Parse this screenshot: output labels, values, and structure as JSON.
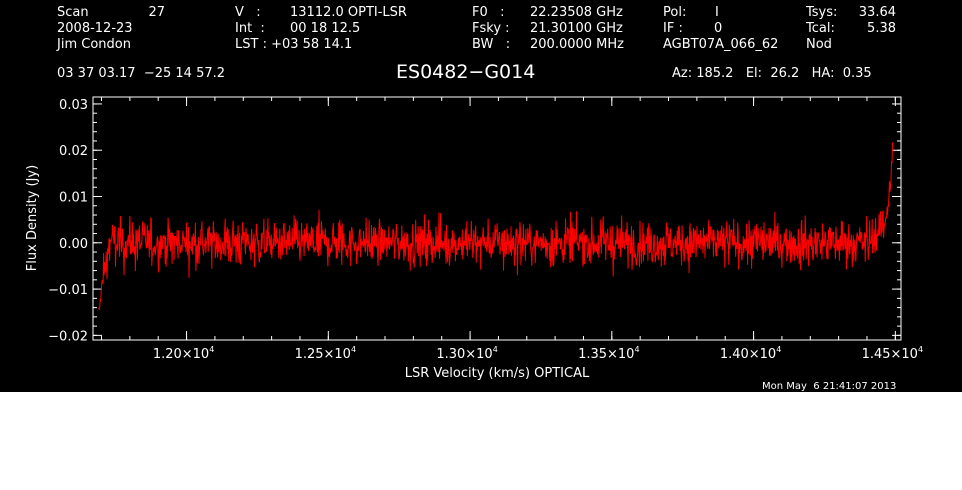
{
  "header": {
    "scan_label": "Scan",
    "scan_value": "27",
    "date": "2008-12-23",
    "observer": "Jim Condon",
    "v_label": "V   :",
    "v_value": "13112.0 OPTI-LSR",
    "int_label": "Int  :",
    "int_value": "00 18 12.5",
    "lst_label": "LST : +03 58 14.1",
    "f0_label": "F0   :",
    "f0_value": "22.23508 GHz",
    "fsky_label": "Fsky :",
    "fsky_value": "21.30100 GHz",
    "bw_label": "BW   :",
    "bw_value": "200.0000 MHz",
    "pol_label": "Pol:",
    "pol_value": "I",
    "if_label": "IF :",
    "if_value": "0",
    "project": "AGBT07A_066_62",
    "tsys_label": "Tsys:",
    "tsys_value": "33.64",
    "tcal_label": "Tcal:",
    "tcal_value": "5.38",
    "mode": "Nod",
    "coords": "03 37 03.17  −25 14 57.2",
    "source": "ES0482−G014",
    "az_el_ha": "Az: 185.2   El:  26.2   HA:  0.35",
    "timestamp": "Mon May  6 21:41:07 2013"
  },
  "colors": {
    "background": "#000000",
    "axes": "#ffffff",
    "series": "#ff0000"
  },
  "chart_data": {
    "type": "line",
    "xlabel": "LSR Velocity (km/s) OPTICAL",
    "ylabel": "Flux Density (Jy)",
    "xlim": [
      11670,
      14520
    ],
    "ylim": [
      -0.021,
      0.0315
    ],
    "x_ticks": [
      {
        "value": 12000,
        "mantissa": "1.20×10",
        "exp": "4"
      },
      {
        "value": 12500,
        "mantissa": "1.25×10",
        "exp": "4"
      },
      {
        "value": 13000,
        "mantissa": "1.30×10",
        "exp": "4"
      },
      {
        "value": 13500,
        "mantissa": "1.35×10",
        "exp": "4"
      },
      {
        "value": 14000,
        "mantissa": "1.40×10",
        "exp": "4"
      },
      {
        "value": 14500,
        "mantissa": "1.45×10",
        "exp": "4"
      }
    ],
    "y_ticks": [
      {
        "value": -0.02,
        "label": "−0.02"
      },
      {
        "value": -0.01,
        "label": "−0.01"
      },
      {
        "value": 0.0,
        "label": "0.00"
      },
      {
        "value": 0.01,
        "label": "0.01"
      },
      {
        "value": 0.02,
        "label": "0.02"
      },
      {
        "value": 0.03,
        "label": "0.03"
      }
    ],
    "series": [
      {
        "color": "#ff0000",
        "x_start": 11690,
        "x_end": 14490,
        "noise_rms": 0.0035,
        "points": [
          [
            11690,
            -0.015
          ],
          [
            11700,
            -0.01
          ],
          [
            11710,
            -0.006
          ],
          [
            11720,
            -0.003
          ],
          [
            11730,
            0.0
          ],
          [
            12000,
            0.0
          ],
          [
            12500,
            0.0
          ],
          [
            13000,
            0.0
          ],
          [
            13500,
            0.0
          ],
          [
            14000,
            0.0
          ],
          [
            14400,
            0.0
          ],
          [
            14440,
            0.002
          ],
          [
            14460,
            0.004
          ],
          [
            14475,
            0.008
          ],
          [
            14485,
            0.014
          ],
          [
            14490,
            0.021
          ]
        ]
      }
    ]
  }
}
